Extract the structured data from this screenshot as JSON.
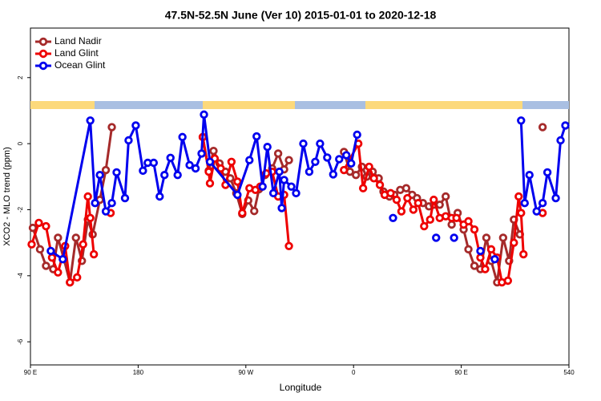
{
  "chart_data": {
    "type": "line",
    "title": "47.5N-52.5N June (Ver 10)   2015-01-01 to 2020-12-18",
    "x_label": "Longitude",
    "y_label": "XCO2 - MLO trend (ppm)",
    "xlim": [
      90,
      540
    ],
    "ylim": [
      -6.7,
      3.5
    ],
    "xticks": [
      {
        "value": 90,
        "label": "90 E"
      },
      180,
      {
        "value": 270,
        "label": "90 W"
      },
      {
        "value": 360,
        "label": "0"
      },
      {
        "value": 450,
        "label": "90 E"
      },
      540
    ],
    "yticks": [
      2,
      0,
      -2,
      -4,
      -6
    ],
    "legend": "top-left",
    "series": [
      {
        "name": "Land Nadir",
        "color": "#a52a2a",
        "x": [
          92,
          98,
          103,
          109,
          113,
          118,
          123,
          128,
          133,
          138,
          142,
          148,
          153,
          158,
          null,
          234,
          239,
          243,
          248,
          253,
          257,
          262,
          267,
          272,
          277,
          281,
          286,
          292,
          297,
          302,
          306,
          null,
          352,
          357,
          362,
          367,
          371,
          376,
          381,
          385,
          390,
          394,
          399,
          404,
          409,
          413,
          418,
          423,
          427,
          432,
          437,
          442,
          447,
          452,
          456,
          461,
          466,
          471,
          475,
          480,
          485,
          490,
          494,
          499,
          null,
          518
        ],
        "values": [
          -2.55,
          -3.2,
          -3.7,
          -3.8,
          -2.85,
          -3.5,
          -4.2,
          -2.85,
          -3.55,
          -2.3,
          -2.75,
          -1.7,
          -0.8,
          0.5,
          null,
          0.2,
          -0.82,
          -0.22,
          -0.6,
          -0.85,
          -1.05,
          -1.5,
          -2.13,
          -1.72,
          -2.04,
          -1.38,
          -0.95,
          -0.75,
          -0.3,
          -0.78,
          -0.5,
          null,
          -0.25,
          -0.85,
          -0.95,
          -0.7,
          -1.0,
          -0.85,
          -1.05,
          -1.45,
          -1.6,
          -1.55,
          -1.4,
          -1.35,
          -1.55,
          -1.65,
          -1.8,
          -1.9,
          -1.85,
          -1.85,
          -1.6,
          -2.45,
          -2.1,
          -2.6,
          -3.2,
          -3.7,
          -3.8,
          -2.85,
          -3.55,
          -4.2,
          -2.85,
          -3.55,
          -2.3,
          -2.75,
          null,
          0.5
        ]
      },
      {
        "name": "Land Glint",
        "color": "#ee0000",
        "x": [
          91,
          97,
          103,
          108,
          113,
          119,
          123,
          129,
          134,
          138,
          140,
          143,
          null,
          157,
          null,
          234,
          239,
          240,
          244,
          249,
          253,
          258,
          263,
          267,
          273,
          278,
          282,
          287,
          292,
          297,
          302,
          306,
          null,
          352,
          364,
          368,
          373,
          377,
          382,
          386,
          391,
          396,
          400,
          405,
          410,
          414,
          419,
          424,
          427,
          432,
          437,
          442,
          446,
          452,
          456,
          461,
          466,
          470,
          475,
          480,
          484,
          489,
          494,
          498,
          500,
          502,
          null,
          518
        ],
        "values": [
          -3.05,
          -2.4,
          -2.5,
          -3.45,
          -3.9,
          -3.1,
          -4.2,
          -4.05,
          -3.05,
          -1.6,
          -2.25,
          -3.35,
          null,
          -2.1,
          null,
          0.2,
          -0.85,
          -1.2,
          -0.45,
          -0.75,
          -1.25,
          -0.55,
          -1.15,
          -2.1,
          -1.35,
          -1.4,
          -1.3,
          -0.9,
          -0.85,
          -1.6,
          -1.55,
          -3.1,
          null,
          -0.8,
          0.0,
          -1.35,
          -0.7,
          -1.05,
          -1.25,
          -1.55,
          -1.5,
          -1.7,
          -2.05,
          -1.65,
          -2.0,
          -1.8,
          -2.5,
          -2.3,
          -1.7,
          -2.25,
          -2.2,
          -2.25,
          -2.25,
          -2.45,
          -2.35,
          -2.6,
          -3.45,
          -3.8,
          -3.2,
          -3.45,
          -4.2,
          -4.15,
          -3.0,
          -1.6,
          -2.1,
          -3.35,
          null,
          -2.1
        ]
      },
      {
        "name": "Ocean Glint",
        "color": "#0000ee",
        "x": [
          107,
          117,
          140,
          144,
          148,
          153,
          158,
          162,
          169,
          172,
          178,
          184,
          188,
          193,
          198,
          202,
          207,
          213,
          217,
          223,
          228,
          233,
          235,
          240,
          263,
          273,
          279,
          284,
          288,
          293,
          298,
          300,
          302,
          308,
          312,
          318,
          323,
          328,
          332,
          338,
          343,
          348,
          354,
          358,
          363,
          null,
          393,
          null,
          429,
          null,
          444,
          null,
          466,
          null,
          478,
          null,
          500,
          503,
          507,
          513,
          518,
          522,
          529,
          533,
          537
        ],
        "values": [
          -3.25,
          -3.5,
          0.7,
          -1.8,
          -0.95,
          -2.05,
          -1.8,
          -0.87,
          -1.65,
          0.1,
          0.55,
          -0.82,
          -0.58,
          -0.58,
          -1.6,
          -0.95,
          -0.43,
          -0.95,
          0.2,
          -0.65,
          -0.75,
          -0.3,
          0.88,
          -0.55,
          -1.55,
          -0.5,
          0.22,
          -1.3,
          -0.1,
          -1.5,
          -0.85,
          -1.95,
          -1.1,
          -1.3,
          -1.5,
          0.0,
          -0.85,
          -0.55,
          0.0,
          -0.42,
          -0.93,
          -0.47,
          -0.35,
          -0.6,
          0.27,
          null,
          -2.25,
          null,
          -2.85,
          null,
          -2.85,
          null,
          -3.25,
          null,
          -3.5,
          null,
          0.7,
          -1.8,
          -0.95,
          -2.05,
          -1.8,
          -0.87,
          -1.65,
          0.1,
          0.55
        ]
      }
    ]
  }
}
